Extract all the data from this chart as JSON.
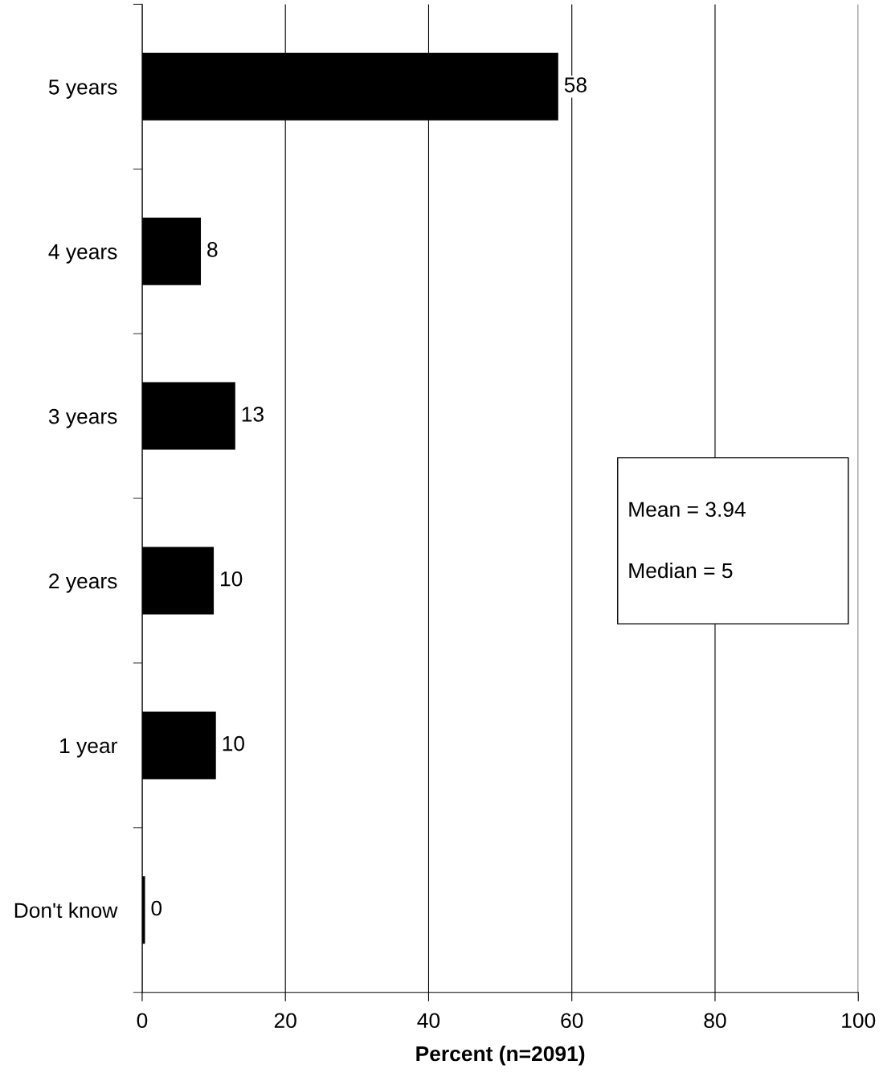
{
  "chart_data": {
    "type": "bar",
    "orientation": "horizontal",
    "xlabel": "Percent (n=2091)",
    "categories": [
      "5 years",
      "4 years",
      "3 years",
      "2 years",
      "1 year",
      "Don't know"
    ],
    "values": [
      58.1,
      8.2,
      13,
      10.0,
      10.3,
      0.4
    ],
    "value_labels": [
      "58",
      "8",
      "13",
      "10",
      "10",
      "0"
    ],
    "color": "#000000",
    "xlim": [
      0,
      100
    ],
    "xticks": [
      0,
      20,
      40,
      60,
      80,
      100
    ],
    "grid": "x",
    "legend": false,
    "annotations": [
      "Mean = 3.94",
      "Median = 5"
    ]
  }
}
